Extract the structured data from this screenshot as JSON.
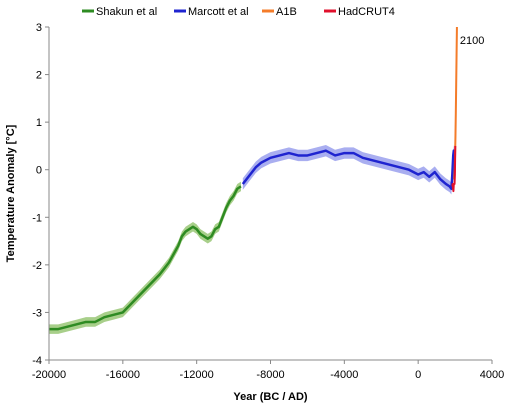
{
  "chart_data": {
    "type": "line",
    "title": "",
    "xlabel": "Year (BC / AD)",
    "ylabel": "Temperature Anomaly [°C]",
    "xlim": [
      -20000,
      4000
    ],
    "ylim": [
      -4,
      3
    ],
    "xticks": [
      -20000,
      -16000,
      -12000,
      -8000,
      -4000,
      0,
      4000
    ],
    "yticks": [
      -4,
      -3,
      -2,
      -1,
      0,
      1,
      2,
      3
    ],
    "grid": false,
    "legend": "top",
    "annotations": [
      {
        "text": "2100",
        "x": 2100,
        "y": 2.9
      }
    ],
    "series": [
      {
        "name": "Shakun et al",
        "color": "#2e8b22",
        "band_color": "#a8cf8a",
        "band": 0.1,
        "x": [
          -20000,
          -19500,
          -19000,
          -18500,
          -18000,
          -17500,
          -17000,
          -16500,
          -16000,
          -15500,
          -15000,
          -14500,
          -14000,
          -13500,
          -13000,
          -12800,
          -12600,
          -12400,
          -12200,
          -12000,
          -11800,
          -11600,
          -11400,
          -11200,
          -11000,
          -10800,
          -10600,
          -10400,
          -10200,
          -10000,
          -9800,
          -9600
        ],
        "y": [
          -3.35,
          -3.35,
          -3.3,
          -3.25,
          -3.2,
          -3.2,
          -3.1,
          -3.05,
          -3.0,
          -2.8,
          -2.6,
          -2.4,
          -2.2,
          -1.95,
          -1.6,
          -1.4,
          -1.3,
          -1.25,
          -1.2,
          -1.25,
          -1.35,
          -1.4,
          -1.45,
          -1.4,
          -1.25,
          -1.2,
          -1.0,
          -0.8,
          -0.65,
          -0.55,
          -0.4,
          -0.35
        ]
      },
      {
        "name": "Marcott et al",
        "color": "#1f24d0",
        "band_color": "#a9aef0",
        "band": 0.12,
        "x": [
          -9500,
          -9200,
          -9000,
          -8800,
          -8500,
          -8000,
          -7500,
          -7000,
          -6500,
          -6000,
          -5500,
          -5000,
          -4500,
          -4000,
          -3500,
          -3000,
          -2500,
          -2000,
          -1500,
          -1000,
          -500,
          0,
          300,
          600,
          900,
          1200,
          1500,
          1700,
          1800,
          1850,
          1900,
          1930,
          1950
        ],
        "y": [
          -0.3,
          -0.15,
          -0.05,
          0.05,
          0.15,
          0.25,
          0.3,
          0.35,
          0.3,
          0.3,
          0.35,
          0.4,
          0.3,
          0.35,
          0.35,
          0.25,
          0.2,
          0.15,
          0.1,
          0.05,
          0.0,
          -0.1,
          -0.05,
          -0.15,
          -0.05,
          -0.2,
          -0.3,
          -0.35,
          -0.4,
          -0.1,
          0.3,
          0.4,
          -0.2
        ]
      },
      {
        "name": "A1B",
        "color": "#f47c2a",
        "x": [
          1950,
          1980,
          2000,
          2020,
          2040,
          2060,
          2080,
          2100
        ],
        "y": [
          -0.2,
          0.0,
          0.3,
          0.7,
          1.2,
          1.8,
          2.4,
          3.0
        ]
      },
      {
        "name": "HadCRUT4",
        "color": "#e0102c",
        "x": [
          1850,
          1870,
          1890,
          1910,
          1930,
          1950,
          1970,
          1990,
          2010
        ],
        "y": [
          -0.35,
          -0.3,
          -0.4,
          -0.45,
          -0.3,
          -0.3,
          -0.3,
          -0.1,
          0.5
        ]
      }
    ]
  }
}
